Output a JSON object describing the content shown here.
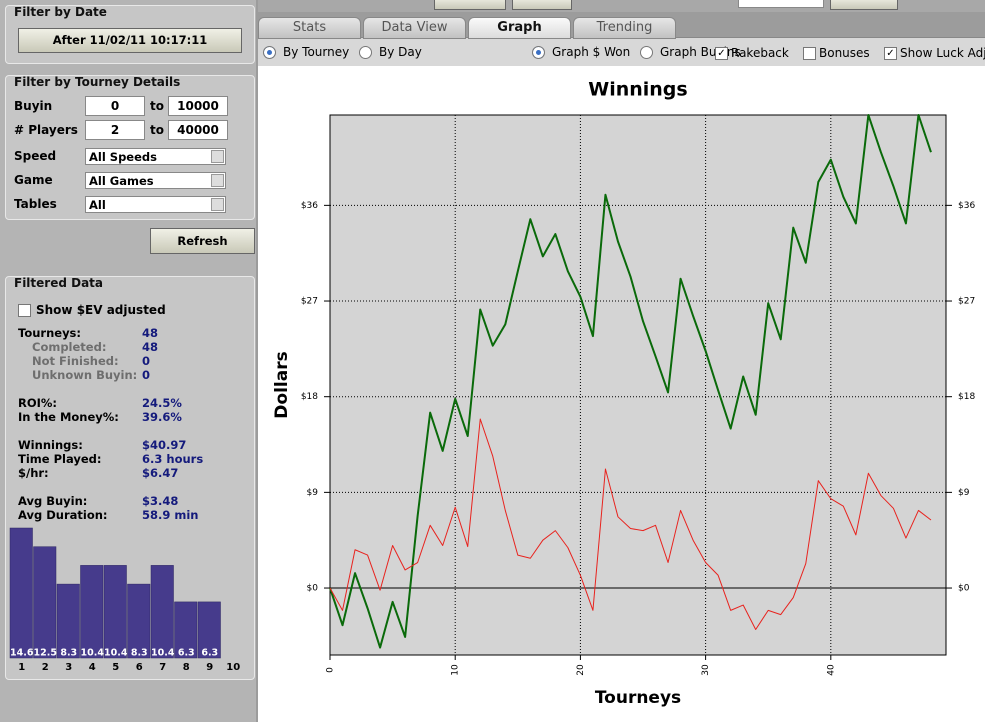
{
  "sidebar": {
    "date_filter": {
      "title": "Filter by Date",
      "button": "After 11/02/11 10:17:11"
    },
    "details": {
      "title": "Filter by Tourney Details",
      "ranges": [
        {
          "label": "Buyin",
          "from": "0",
          "to_label": "to",
          "to": "10000"
        },
        {
          "label": "# Players",
          "from": "2",
          "to_label": "to",
          "to": "40000"
        }
      ],
      "selects": [
        {
          "label": "Speed",
          "value": "All Speeds"
        },
        {
          "label": "Game",
          "value": "All Games"
        },
        {
          "label": "Tables",
          "value": "All"
        }
      ],
      "refresh": "Refresh"
    },
    "filtered": {
      "title": "Filtered Data",
      "ev_checkbox": "Show $EV adjusted",
      "groups": [
        [
          {
            "label": "Tourneys:",
            "value": "48",
            "sub": [
              {
                "label": "Completed:",
                "value": "48"
              },
              {
                "label": "Not Finished:",
                "value": "0"
              },
              {
                "label": "Unknown Buyin:",
                "value": "0"
              }
            ]
          }
        ],
        [
          {
            "label": "ROI%:",
            "value": "24.5%"
          },
          {
            "label": "In the Money%:",
            "value": "39.6%"
          }
        ],
        [
          {
            "label": "Winnings:",
            "value": "$40.97"
          },
          {
            "label": "Time Played:",
            "value": "6.3 hours"
          },
          {
            "label": "$/hr:",
            "value": "$6.47"
          }
        ],
        [
          {
            "label": "Avg Buyin:",
            "value": "$3.48"
          },
          {
            "label": "Avg Duration:",
            "value": "58.9 min"
          }
        ]
      ]
    }
  },
  "tabs": {
    "items": [
      "Stats",
      "Data View",
      "Graph",
      "Trending"
    ],
    "active": 2
  },
  "options": {
    "radios": [
      [
        {
          "label": "By Tourney",
          "checked": true
        },
        {
          "label": "By Day",
          "checked": false
        }
      ],
      [
        {
          "label": "Graph $ Won",
          "checked": true
        },
        {
          "label": "Graph Buyins",
          "checked": false
        }
      ]
    ],
    "checkboxes": [
      {
        "label": "Rakeback",
        "checked": true
      },
      {
        "label": "Bonuses",
        "checked": false
      },
      {
        "label": "Show Luck Adj",
        "checked": true
      }
    ]
  },
  "chart_data": [
    {
      "type": "line",
      "title": "Winnings",
      "xlabel": "Tourneys",
      "ylabel": "Dollars",
      "x": [
        0,
        1,
        2,
        3,
        4,
        5,
        6,
        7,
        8,
        9,
        10,
        11,
        12,
        13,
        14,
        15,
        16,
        17,
        18,
        19,
        20,
        21,
        22,
        23,
        24,
        25,
        26,
        27,
        28,
        29,
        30,
        31,
        32,
        33,
        34,
        35,
        36,
        37,
        38,
        39,
        40,
        41,
        42,
        43,
        44,
        45,
        46,
        47,
        48
      ],
      "series": [
        {
          "color": "#0a6a0a",
          "width": 2,
          "values": [
            0,
            -3.5,
            1.4,
            -1.9,
            -5.6,
            -1.3,
            -4.6,
            6.8,
            16.5,
            12.9,
            17.8,
            14.3,
            26.2,
            22.8,
            24.8,
            29.8,
            34.7,
            31.2,
            33.3,
            29.8,
            27.4,
            23.7,
            37.0,
            32.6,
            29.3,
            25.1,
            21.8,
            18.4,
            29.1,
            25.6,
            22.3,
            18.6,
            15.0,
            19.9,
            16.3,
            26.8,
            23.4,
            33.9,
            30.6,
            38.2,
            40.3,
            36.8,
            34.3,
            44.5,
            41.0,
            37.8,
            34.3,
            44.5,
            41.0
          ]
        },
        {
          "color": "#e8231e",
          "width": 1,
          "values": [
            0,
            -2.1,
            3.6,
            3.1,
            -0.2,
            4.0,
            1.7,
            2.4,
            5.9,
            4.0,
            7.6,
            3.9,
            15.9,
            12.4,
            7.3,
            3.1,
            2.8,
            4.5,
            5.4,
            3.8,
            1.2,
            -2.1,
            11.2,
            6.7,
            5.6,
            5.4,
            5.9,
            2.4,
            7.3,
            4.5,
            2.4,
            1.2,
            -2.1,
            -1.6,
            -3.9,
            -2.1,
            -2.5,
            -0.9,
            2.3,
            10.1,
            8.4,
            7.7,
            5.0,
            10.8,
            8.7,
            7.5,
            4.7,
            7.3,
            6.4
          ]
        }
      ],
      "xlim": [
        0,
        49.2
      ],
      "xticks": [
        0,
        10,
        20,
        30,
        40
      ],
      "ylim": [
        -6.3,
        44.5
      ],
      "yticks": [
        {
          "value": 0,
          "label": "$0"
        },
        {
          "value": 9,
          "label": "$9"
        },
        {
          "value": 18,
          "label": "$18"
        },
        {
          "value": 27,
          "label": "$27"
        },
        {
          "value": 36,
          "label": "$36"
        }
      ],
      "grid": true,
      "zero_line": true,
      "background": "#d4d4d4"
    },
    {
      "type": "bar",
      "categories": [
        "1",
        "2",
        "3",
        "4",
        "5",
        "6",
        "7",
        "8",
        "9",
        "10"
      ],
      "values": [
        14.6,
        12.5,
        8.3,
        10.4,
        10.4,
        8.3,
        10.4,
        6.3,
        6.3,
        null
      ],
      "ylim": [
        0,
        14.6
      ],
      "color": "#463b8c"
    }
  ]
}
